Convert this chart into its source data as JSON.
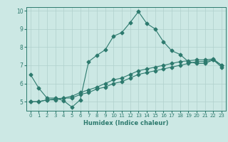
{
  "title": "",
  "xlabel": "Humidex (Indice chaleur)",
  "bg_color": "#cce8e4",
  "line_color": "#2d7a6e",
  "grid_color": "#b0d0cc",
  "xlim": [
    -0.5,
    23.5
  ],
  "ylim": [
    4.5,
    10.2
  ],
  "yticks": [
    5,
    6,
    7,
    8,
    9,
    10
  ],
  "xticks": [
    0,
    1,
    2,
    3,
    4,
    5,
    6,
    7,
    8,
    9,
    10,
    11,
    12,
    13,
    14,
    15,
    16,
    17,
    18,
    19,
    20,
    21,
    22,
    23
  ],
  "line1_x": [
    0,
    1,
    2,
    3,
    4,
    5,
    6,
    7,
    8,
    9,
    10,
    11,
    12,
    13,
    14,
    15,
    16,
    17,
    18,
    19,
    20,
    21,
    22,
    23
  ],
  "line1_y": [
    6.5,
    5.75,
    5.2,
    5.2,
    5.05,
    4.7,
    5.1,
    7.2,
    7.55,
    7.85,
    8.6,
    8.8,
    9.35,
    9.95,
    9.3,
    9.0,
    8.3,
    7.8,
    7.6,
    7.2,
    7.1,
    7.1,
    7.3,
    6.9
  ],
  "line2_x": [
    0,
    1,
    2,
    3,
    4,
    5,
    6,
    7,
    8,
    9,
    10,
    11,
    12,
    13,
    14,
    15,
    16,
    17,
    18,
    19,
    20,
    21,
    22,
    23
  ],
  "line2_y": [
    5.0,
    5.0,
    5.1,
    5.1,
    5.2,
    5.2,
    5.4,
    5.5,
    5.7,
    5.8,
    6.0,
    6.1,
    6.3,
    6.5,
    6.6,
    6.7,
    6.8,
    6.9,
    7.0,
    7.1,
    7.2,
    7.2,
    7.3,
    7.0
  ],
  "line3_x": [
    0,
    1,
    2,
    3,
    4,
    5,
    6,
    7,
    8,
    9,
    10,
    11,
    12,
    13,
    14,
    15,
    16,
    17,
    18,
    19,
    20,
    21,
    22,
    23
  ],
  "line3_y": [
    5.0,
    5.0,
    5.1,
    5.15,
    5.2,
    5.3,
    5.5,
    5.65,
    5.8,
    6.0,
    6.2,
    6.3,
    6.5,
    6.7,
    6.8,
    6.9,
    7.0,
    7.1,
    7.2,
    7.25,
    7.3,
    7.3,
    7.35,
    7.0
  ],
  "axis_color": "#2d7a6e",
  "tick_color": "#2d7a6e",
  "markersize": 2.5,
  "linewidth": 0.8
}
